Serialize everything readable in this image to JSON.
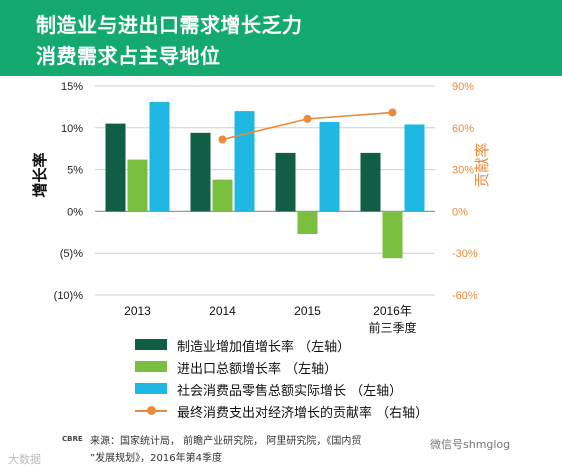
{
  "header": {
    "title_line1": "制造业与进出口需求增长乏力",
    "title_line2": "消费需求占主导地位"
  },
  "colors": {
    "header_bg": "#14a96f",
    "manufacturing": "#0f5e45",
    "trade": "#7bbf3e",
    "retail": "#1fb8e3",
    "consumption": "#e98a3c"
  },
  "chart_data": {
    "type": "bar",
    "categories": [
      "2013",
      "2014",
      "2015",
      "2016年\n前三季度"
    ],
    "category_lines": [
      [
        "2013"
      ],
      [
        "2014"
      ],
      [
        "2015"
      ],
      [
        "2016年",
        "前三季度"
      ]
    ],
    "series": [
      {
        "name": "制造业增加值增长率 （左轴）",
        "type": "bar",
        "axis": "left",
        "values": [
          10.5,
          9.4,
          7.0,
          7.0
        ]
      },
      {
        "name": "进出口总额增长率  （左轴）",
        "type": "bar",
        "axis": "left",
        "values": [
          6.2,
          3.8,
          -2.7,
          -5.6
        ]
      },
      {
        "name": "社会消费品零售总额实际增长  （左轴）",
        "type": "bar",
        "axis": "left",
        "values": [
          13.1,
          12.0,
          10.7,
          10.4
        ]
      },
      {
        "name": "最终消费支出对经济增长的贡献率  （右轴）",
        "type": "line",
        "axis": "right",
        "values": [
          null,
          51.6,
          66.4,
          71.0
        ]
      }
    ],
    "ylabel": "增长率",
    "ylabel_right": "贡献率",
    "ylim": [
      -10,
      15
    ],
    "ylim_right": [
      -60,
      90
    ],
    "yticks": [
      15,
      10,
      5,
      0,
      -5,
      -10
    ],
    "ytick_labels": [
      "15%",
      "10%",
      "5%",
      "0%",
      "(5)%",
      "(10)%"
    ],
    "yticks_right": [
      90,
      60,
      30,
      0,
      -30,
      -60
    ],
    "ytick_labels_right": [
      "90%",
      "60%",
      "30%",
      "0%",
      "-30%",
      "-60%"
    ],
    "grid": true,
    "legend_position": "bottom"
  },
  "legend": [
    {
      "label": "制造业增加值增长率 （左轴）",
      "kind": "bar",
      "color": "#0f5e45"
    },
    {
      "label": "进出口总额增长率  （左轴）",
      "kind": "bar",
      "color": "#7bbf3e"
    },
    {
      "label": "社会消费品零售总额实际增长  （左轴）",
      "kind": "bar",
      "color": "#1fb8e3"
    },
    {
      "label": "最终消费支出对经济增长的贡献率  （右轴）",
      "kind": "line",
      "color": "#e98a3c"
    }
  ],
  "footer": {
    "brand": "CBRE",
    "source_line1": "来源：国家统计局， 前瞻产业研究院， 阿里研究院，《国内贸",
    "source_line2": "”发展规划》，2016年第4季度",
    "watermark_left": "大数据",
    "watermark_right": "微信号shmglog"
  }
}
